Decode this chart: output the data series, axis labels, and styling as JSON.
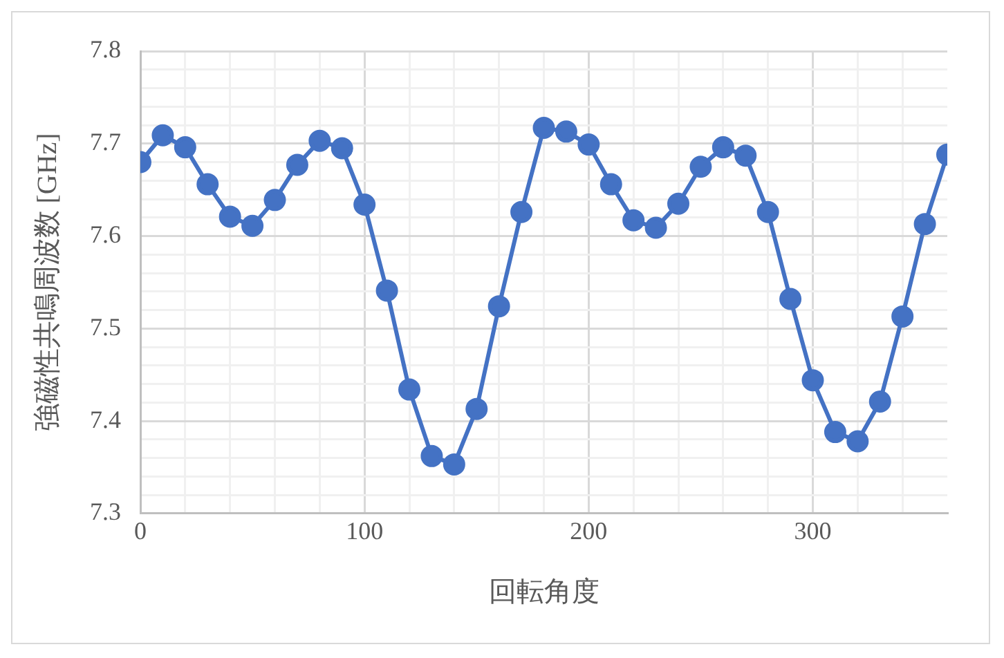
{
  "chart_data": {
    "type": "line",
    "xlabel": "回転角度",
    "ylabel": "強磁性共鳴周波数 [GHz]",
    "x": [
      0,
      10,
      20,
      30,
      40,
      50,
      60,
      70,
      80,
      90,
      100,
      110,
      120,
      130,
      140,
      150,
      160,
      170,
      180,
      190,
      200,
      210,
      220,
      230,
      240,
      250,
      260,
      270,
      280,
      290,
      300,
      310,
      320,
      330,
      340,
      350,
      360
    ],
    "series": [
      {
        "color": "#4472c4",
        "values": [
          7.68,
          7.709,
          7.696,
          7.656,
          7.621,
          7.611,
          7.639,
          7.677,
          7.703,
          7.695,
          7.634,
          7.541,
          7.434,
          7.362,
          7.353,
          7.413,
          7.524,
          7.626,
          7.717,
          7.713,
          7.699,
          7.656,
          7.617,
          7.609,
          7.635,
          7.675,
          7.696,
          7.687,
          7.626,
          7.532,
          7.444,
          7.388,
          7.378,
          7.421,
          7.513,
          7.613,
          7.688
        ]
      }
    ],
    "xlim": [
      0,
      360
    ],
    "xticks": [
      0,
      {
        "value": 20,
        "label": null
      },
      {
        "value": 40,
        "label": null
      },
      {
        "value": 60,
        "label": null
      },
      {
        "value": 80,
        "label": null
      },
      100,
      {
        "value": 120,
        "label": null
      },
      {
        "value": 140,
        "label": null
      },
      {
        "value": 160,
        "label": null
      },
      {
        "value": 180,
        "label": null
      },
      200,
      {
        "value": 220,
        "label": null
      },
      {
        "value": 240,
        "label": null
      },
      {
        "value": 260,
        "label": null
      },
      {
        "value": 280,
        "label": null
      },
      300,
      {
        "value": 320,
        "label": null
      },
      {
        "value": 340,
        "label": null
      }
    ],
    "ylim": [
      7.3,
      7.8
    ],
    "yticks": [
      7.3,
      {
        "value": 7.32,
        "label": null
      },
      {
        "value": 7.34,
        "label": null
      },
      {
        "value": 7.36,
        "label": null
      },
      {
        "value": 7.38,
        "label": null
      },
      7.4,
      {
        "value": 7.42,
        "label": null
      },
      {
        "value": 7.44,
        "label": null
      },
      {
        "value": 7.46,
        "label": null
      },
      {
        "value": 7.48,
        "label": null
      },
      7.5,
      {
        "value": 7.52,
        "label": null
      },
      {
        "value": 7.54,
        "label": null
      },
      {
        "value": 7.56,
        "label": null
      },
      {
        "value": 7.58,
        "label": null
      },
      7.6,
      {
        "value": 7.62,
        "label": null
      },
      {
        "value": 7.64,
        "label": null
      },
      {
        "value": 7.66,
        "label": null
      },
      {
        "value": 7.68,
        "label": null
      },
      7.7,
      {
        "value": 7.72,
        "label": null
      },
      {
        "value": 7.74,
        "label": null
      },
      {
        "value": 7.76,
        "label": null
      },
      {
        "value": 7.78,
        "label": null
      },
      7.8
    ],
    "grid": true,
    "marker": "circle",
    "line_style": "solid",
    "legend": false
  }
}
